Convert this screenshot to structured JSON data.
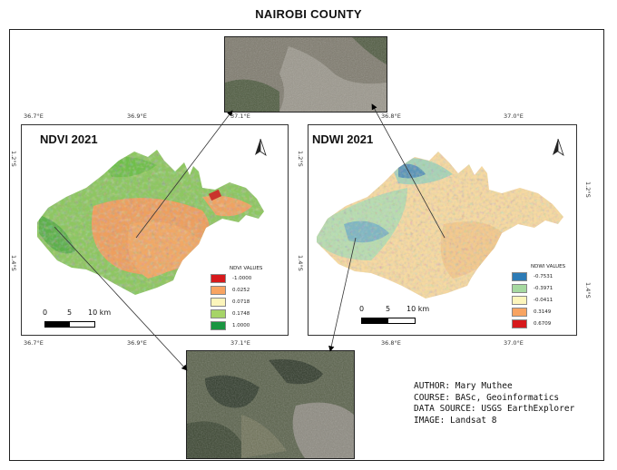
{
  "title": "NAIROBI COUNTY",
  "ndvi": {
    "title": "NDVI 2021",
    "top_ticks": [
      "36.7°E",
      "36.9°E",
      "37.1°E"
    ],
    "bottom_ticks": [
      "36.7°E",
      "36.9°E",
      "37.1°E"
    ],
    "left_ticks": [
      "1.2°S",
      "1.4°S"
    ],
    "legend": {
      "title": "NDVI VALUES",
      "entries": [
        {
          "label": "-1.0000",
          "color": "#d7191c"
        },
        {
          "label": "0.0252",
          "color": "#f8a462"
        },
        {
          "label": "0.0718",
          "color": "#fcf5bb"
        },
        {
          "label": "0.1748",
          "color": "#a6d468"
        },
        {
          "label": "1.0000",
          "color": "#1a9641"
        }
      ]
    },
    "scale": {
      "labels": [
        "0",
        "5",
        "10 km"
      ]
    }
  },
  "ndwi": {
    "title": "NDWI 2021",
    "top_ticks": [
      "36.8°E",
      "37.0°E"
    ],
    "bottom_ticks": [
      "36.8°E",
      "37.0°E"
    ],
    "left_ticks": [
      "1.2°S",
      "1.4°S"
    ],
    "right_ticks": [
      "1.2°S",
      "1.4°S"
    ],
    "legend": {
      "title": "NDWI VALUES",
      "entries": [
        {
          "label": "-0.7531",
          "color": "#2c7bb6"
        },
        {
          "label": "-0.3971",
          "color": "#a6d9a0"
        },
        {
          "label": "-0.0411",
          "color": "#fcf5bb"
        },
        {
          "label": "0.3149",
          "color": "#f8a462"
        },
        {
          "label": "0.6709",
          "color": "#d7191c"
        }
      ]
    },
    "scale": {
      "labels": [
        "0",
        "5",
        "10 km"
      ]
    }
  },
  "colors": {
    "ndvi_green": "#6fbf4a",
    "ndvi_orange": "#ec9b5b",
    "ndwi_cream": "#f5dca0",
    "ndwi_blue": "#5b95b8"
  },
  "metadata": {
    "author": "AUTHOR: Mary Muthee",
    "course": "COURSE: BASc, Geoinformatics",
    "source": "DATA SOURCE: USGS EarthExplorer",
    "image": "IMAGE: Landsat 8"
  },
  "icons": {
    "north_arrow": "north-arrow-icon"
  }
}
